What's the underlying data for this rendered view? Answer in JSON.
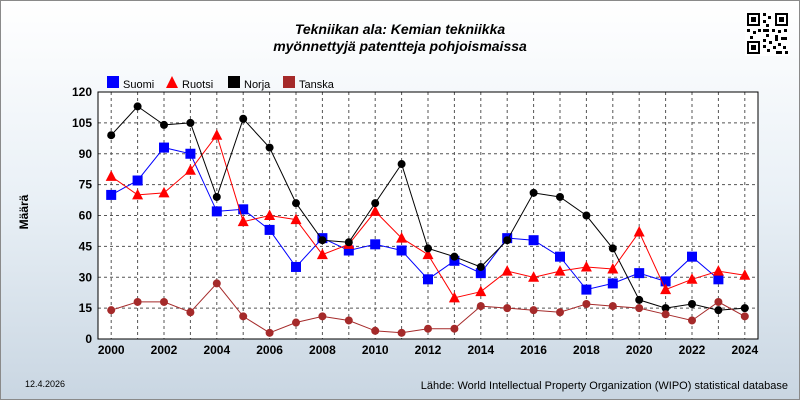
{
  "title_line1": "Tekniikan ala: Kemian tekniikka",
  "title_line2": "myönnettyjä patentteja pohjoismaissa",
  "footer": {
    "date": "12.4.2026",
    "source": "Lähde: World Intellectual Property Organization (WIPO) statistical database"
  },
  "chart_data": {
    "type": "line",
    "title": "Tekniikan ala: Kemian tekniikka myönnettyjä patentteja pohjoismaissa",
    "xlabel": "",
    "ylabel": "Määrä",
    "x": [
      2000,
      2001,
      2002,
      2003,
      2004,
      2005,
      2006,
      2007,
      2008,
      2009,
      2010,
      2011,
      2012,
      2013,
      2014,
      2015,
      2016,
      2017,
      2018,
      2019,
      2020,
      2021,
      2022,
      2023,
      2024
    ],
    "ylim": [
      0,
      120
    ],
    "yticks": [
      0,
      15,
      30,
      45,
      60,
      75,
      90,
      105,
      120
    ],
    "xticks": [
      2000,
      2002,
      2004,
      2006,
      2008,
      2010,
      2012,
      2014,
      2016,
      2018,
      2020,
      2022,
      2024
    ],
    "grid": true,
    "legend_position": "top-left",
    "series": [
      {
        "name": "Suomi",
        "color": "#0000ff",
        "marker": "square",
        "values": [
          70,
          77,
          93,
          90,
          62,
          63,
          53,
          35,
          49,
          43,
          46,
          43,
          29,
          38,
          32,
          49,
          48,
          40,
          24,
          27,
          32,
          28,
          40,
          29,
          null
        ]
      },
      {
        "name": "Ruotsi",
        "color": "#ff0000",
        "marker": "triangle",
        "values": [
          79,
          70,
          71,
          82,
          99,
          57,
          60,
          58,
          41,
          46,
          62,
          49,
          41,
          20,
          23,
          33,
          30,
          33,
          35,
          34,
          52,
          24,
          29,
          33,
          31
        ]
      },
      {
        "name": "Norja",
        "color": "#000000",
        "marker": "circle",
        "values": [
          99,
          113,
          104,
          105,
          69,
          107,
          93,
          66,
          48,
          47,
          66,
          85,
          44,
          40,
          35,
          48,
          71,
          69,
          60,
          44,
          19,
          15,
          17,
          14,
          15
        ]
      },
      {
        "name": "Tanska",
        "color": "#a52a2a",
        "marker": "circle",
        "values": [
          14,
          18,
          18,
          13,
          27,
          11,
          3,
          8,
          11,
          9,
          4,
          3,
          5,
          5,
          16,
          15,
          14,
          13,
          17,
          16,
          15,
          12,
          9,
          18,
          11
        ]
      }
    ]
  }
}
